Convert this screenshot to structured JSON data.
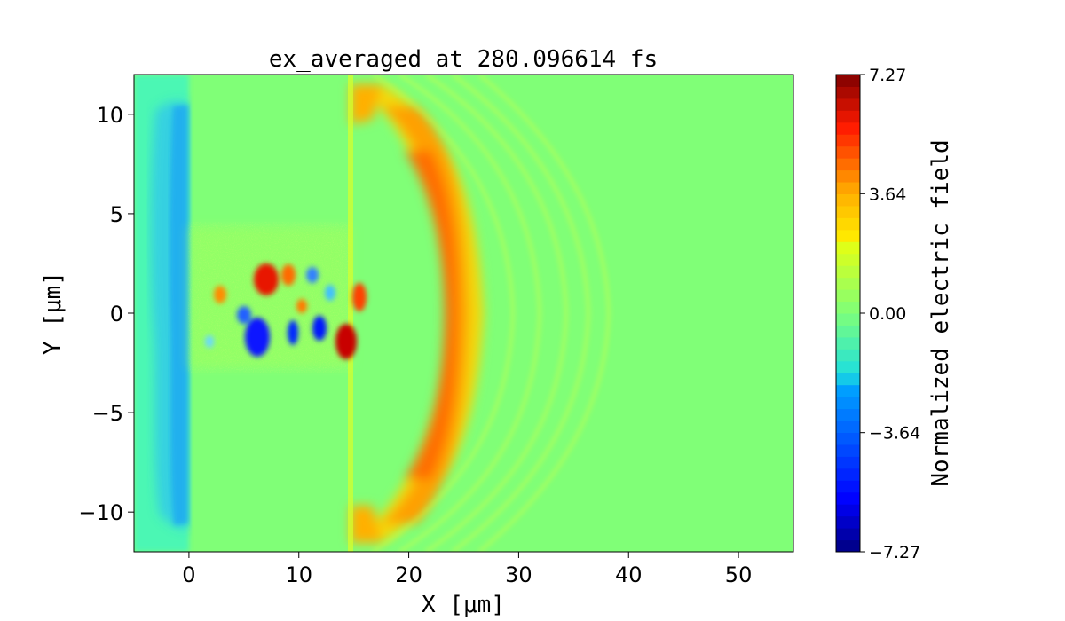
{
  "chart_data": {
    "type": "heatmap",
    "title": "ex_averaged at 280.096614 fs",
    "xlabel": "X [μm]",
    "ylabel": "Y [μm]",
    "xlim": [
      -5,
      55
    ],
    "ylim": [
      -12,
      12
    ],
    "x_ticks": [
      {
        "value": 0,
        "label": "0"
      },
      {
        "value": 10,
        "label": "10"
      },
      {
        "value": 20,
        "label": "20"
      },
      {
        "value": 30,
        "label": "30"
      },
      {
        "value": 40,
        "label": "40"
      },
      {
        "value": 50,
        "label": "50"
      }
    ],
    "y_ticks": [
      {
        "value": 10,
        "label": "10"
      },
      {
        "value": 5,
        "label": "5"
      },
      {
        "value": 0,
        "label": "0"
      },
      {
        "value": -5,
        "label": "−5"
      },
      {
        "value": -10,
        "label": "−10"
      }
    ],
    "colorbar": {
      "label": "Normalized electric field",
      "colormap": "jet",
      "range": [
        -7.27,
        7.27
      ],
      "ticks": [
        {
          "value": 7.27,
          "label": "7.27"
        },
        {
          "value": 3.64,
          "label": "3.64"
        },
        {
          "value": 0.0,
          "label": "0.00"
        },
        {
          "value": -3.64,
          "label": "−3.64"
        },
        {
          "value": -7.27,
          "label": "−7.27"
        }
      ]
    },
    "grid": false
  }
}
